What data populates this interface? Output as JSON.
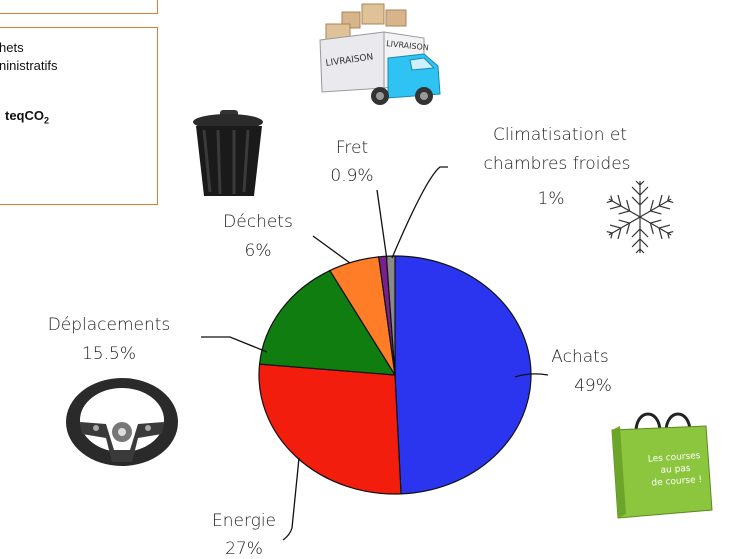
{
  "info_box": {
    "line1": "hets",
    "line2": "ninistratifs",
    "total_unit": "teqCO",
    "total_unit_sub": "2"
  },
  "icons": {
    "truck": "delivery-truck-icon",
    "truck_text_1": "LIVRAISON",
    "truck_text_2": "LIVRAISON",
    "bin": "trash-bin-icon",
    "snow": "snowflake-icon",
    "wheel": "steering-wheel-icon",
    "bag": "shopping-bag-icon",
    "bag_text": "Les courses au pas de course !"
  },
  "colors": {
    "achats": "#2b35ef",
    "energie": "#f21d0d",
    "deplacements": "#107d10",
    "dechets": "#ff7d27",
    "fret": "#7a1f8f",
    "climatisation": "#8a8a8a",
    "accent": "#e07b39"
  },
  "chart_data": {
    "type": "pie",
    "title": "",
    "slices": [
      {
        "label": "Achats",
        "value": 49,
        "value_text": "49%"
      },
      {
        "label": "Energie",
        "value": 27,
        "value_text": "27%"
      },
      {
        "label": "Déplacements",
        "value": 15.5,
        "value_text": "15.5%"
      },
      {
        "label": "Déchets",
        "value": 6,
        "value_text": "6%"
      },
      {
        "label": "Fret",
        "value": 0.9,
        "value_text": "0.9%"
      },
      {
        "label": "Climatisation et chambres froides",
        "label_line1": "Climatisation et",
        "label_line2": "chambres froides",
        "value": 1,
        "value_text": "1%"
      }
    ]
  }
}
